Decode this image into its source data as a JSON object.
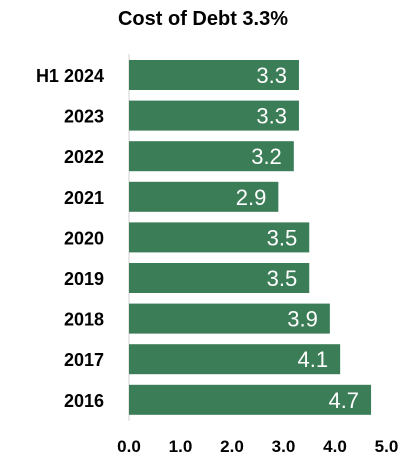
{
  "chart_data": {
    "type": "bar",
    "orientation": "horizontal",
    "title": "Cost of Debt 3.3%",
    "xlabel": "",
    "ylabel": "",
    "categories": [
      "H1 2024",
      "2023",
      "2022",
      "2021",
      "2020",
      "2019",
      "2018",
      "2017",
      "2016"
    ],
    "values": [
      3.3,
      3.3,
      3.2,
      2.9,
      3.5,
      3.5,
      3.9,
      4.1,
      4.7
    ],
    "value_labels": [
      "3.3",
      "3.3",
      "3.2",
      "2.9",
      "3.5",
      "3.5",
      "3.9",
      "4.1",
      "4.7"
    ],
    "xlim": [
      0,
      5
    ],
    "xticks": [
      "0.0",
      "1.0",
      "2.0",
      "3.0",
      "4.0",
      "5.0"
    ],
    "grid": false,
    "legend": "none",
    "bar_color": "#3b7d57",
    "label_color": "#ffffff"
  }
}
